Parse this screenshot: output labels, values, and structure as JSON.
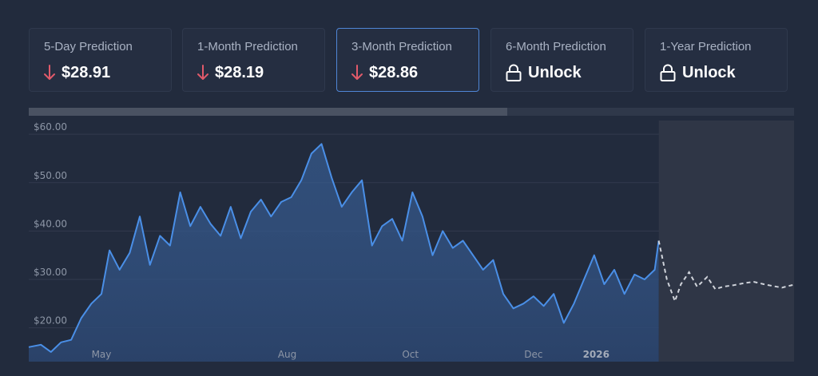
{
  "cards": [
    {
      "label": "5-Day Prediction",
      "value": "$28.91",
      "icon": "arrow-down-icon",
      "color": "#e05a6a",
      "active": false
    },
    {
      "label": "1-Month Prediction",
      "value": "$28.19",
      "icon": "arrow-down-icon",
      "color": "#e05a6a",
      "active": false
    },
    {
      "label": "3-Month Prediction",
      "value": "$28.86",
      "icon": "arrow-down-icon",
      "color": "#e05a6a",
      "active": true
    },
    {
      "label": "6-Month Prediction",
      "value": "Unlock",
      "icon": "lock-icon",
      "color": "#ffffff",
      "active": false
    },
    {
      "label": "1-Year Prediction",
      "value": "Unlock",
      "icon": "lock-icon",
      "color": "#ffffff",
      "active": false
    }
  ],
  "progress": {
    "fraction": 0.625
  },
  "chart_data": {
    "type": "line",
    "title": "",
    "xlabel": "",
    "ylabel": "",
    "ylim": [
      13,
      63
    ],
    "xlim": [
      "2025-03-26",
      "2026-04-09"
    ],
    "grid": true,
    "y_ticks": [
      {
        "value": 20,
        "label": "$20.00"
      },
      {
        "value": 30,
        "label": "$30.00"
      },
      {
        "value": 40,
        "label": "$40.00"
      },
      {
        "value": 50,
        "label": "$50.00"
      },
      {
        "value": 60,
        "label": "$60.00"
      }
    ],
    "x_ticks": [
      {
        "value": "2025-05-01",
        "label": "May",
        "bold": false
      },
      {
        "value": "2025-08-01",
        "label": "Aug",
        "bold": false
      },
      {
        "value": "2025-10-01",
        "label": "Oct",
        "bold": false
      },
      {
        "value": "2025-12-01",
        "label": "Dec",
        "bold": false
      },
      {
        "value": "2026-01-01",
        "label": "2026",
        "bold": true
      }
    ],
    "series": [
      {
        "style": "solid-area",
        "color": "#4a8fe7",
        "x": [
          "2025-03-26",
          "2025-04-01",
          "2025-04-06",
          "2025-04-11",
          "2025-04-16",
          "2025-04-21",
          "2025-04-26",
          "2025-05-01",
          "2025-05-05",
          "2025-05-10",
          "2025-05-15",
          "2025-05-20",
          "2025-05-25",
          "2025-05-30",
          "2025-06-04",
          "2025-06-09",
          "2025-06-14",
          "2025-06-19",
          "2025-06-24",
          "2025-06-29",
          "2025-07-04",
          "2025-07-09",
          "2025-07-14",
          "2025-07-19",
          "2025-07-24",
          "2025-07-29",
          "2025-08-03",
          "2025-08-08",
          "2025-08-13",
          "2025-08-18",
          "2025-08-23",
          "2025-08-28",
          "2025-09-02",
          "2025-09-07",
          "2025-09-12",
          "2025-09-17",
          "2025-09-22",
          "2025-09-27",
          "2025-10-02",
          "2025-10-07",
          "2025-10-12",
          "2025-10-17",
          "2025-10-22",
          "2025-10-27",
          "2025-11-01",
          "2025-11-06",
          "2025-11-11",
          "2025-11-16",
          "2025-11-21",
          "2025-11-26",
          "2025-12-01",
          "2025-12-06",
          "2025-12-11",
          "2025-12-16",
          "2025-12-21",
          "2025-12-26",
          "2025-12-31",
          "2026-01-05",
          "2026-01-10",
          "2026-01-15",
          "2026-01-20",
          "2026-01-25",
          "2026-01-30",
          "2026-02-01"
        ],
        "y": [
          16.0,
          16.5,
          15.0,
          17.0,
          17.5,
          22.0,
          25.0,
          27.0,
          36.0,
          32.0,
          35.5,
          43.0,
          33.0,
          39.0,
          37.0,
          48.0,
          41.0,
          45.0,
          41.5,
          39.0,
          45.0,
          38.5,
          44.0,
          46.5,
          43.0,
          46.0,
          47.0,
          50.5,
          56.0,
          58.0,
          51.0,
          45.0,
          48.0,
          50.5,
          37.0,
          41.0,
          42.5,
          38.0,
          48.0,
          43.0,
          35.0,
          40.0,
          36.5,
          38.0,
          35.0,
          32.0,
          34.0,
          27.0,
          24.0,
          25.0,
          26.5,
          24.5,
          27.0,
          21.0,
          25.0,
          30.0,
          35.0,
          29.0,
          32.0,
          27.0,
          31.0,
          30.0,
          32.0,
          38.0
        ]
      },
      {
        "style": "dashed-forecast",
        "color": "#cfd3da",
        "x": [
          "2026-02-01",
          "2026-02-05",
          "2026-02-09",
          "2026-02-12",
          "2026-02-16",
          "2026-02-20",
          "2026-02-25",
          "2026-03-01",
          "2026-03-05",
          "2026-03-10",
          "2026-03-15",
          "2026-03-20",
          "2026-03-25",
          "2026-03-30",
          "2026-04-03",
          "2026-04-09"
        ],
        "y": [
          38.0,
          30.0,
          25.5,
          29.0,
          31.5,
          28.5,
          30.5,
          28.0,
          28.5,
          28.8,
          29.2,
          29.5,
          29.0,
          28.6,
          28.3,
          28.9
        ]
      }
    ]
  }
}
